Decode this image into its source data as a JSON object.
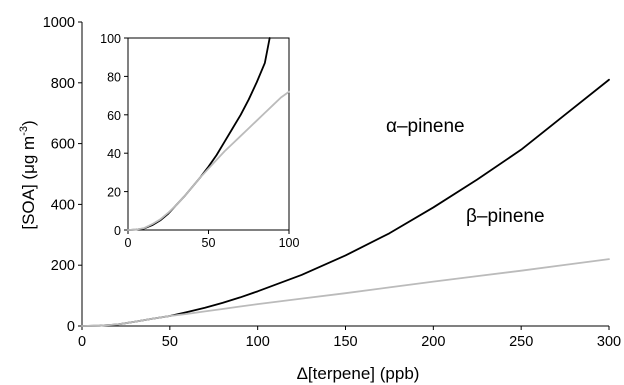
{
  "chart_data": [
    {
      "type": "line",
      "title": "",
      "xlabel": "Δ[terpene] (ppb)",
      "ylabel": "[SOA] (μg m",
      "ylabel_superscript": "-3",
      "ylabel_close": ")",
      "xlim": [
        0,
        300
      ],
      "ylim": [
        0,
        1000
      ],
      "xticks": [
        0,
        50,
        100,
        150,
        200,
        250,
        300
      ],
      "yticks": [
        0,
        200,
        400,
        600,
        800,
        1000
      ],
      "grid": false,
      "legend": "none",
      "series": [
        {
          "name": "α–pinene",
          "color": "#000000",
          "x": [
            0,
            10,
            20,
            30,
            40,
            50,
            60,
            70,
            80,
            90,
            100,
            125,
            150,
            175,
            200,
            225,
            250,
            275,
            300
          ],
          "y": [
            0,
            1,
            5,
            14,
            24,
            33,
            46,
            60,
            76,
            94,
            114,
            168,
            232,
            305,
            390,
            482,
            580,
            695,
            810
          ]
        },
        {
          "name": "β–pinene",
          "color": "#bbbbbb",
          "x": [
            0,
            10,
            20,
            30,
            40,
            50,
            60,
            70,
            80,
            90,
            100,
            125,
            150,
            175,
            200,
            225,
            250,
            275,
            300
          ],
          "y": [
            0,
            1,
            5,
            14,
            24,
            33,
            40,
            48,
            56,
            64,
            72,
            90,
            108,
            127,
            146,
            164,
            182,
            201,
            220
          ]
        }
      ]
    },
    {
      "type": "line",
      "title": "",
      "xlim": [
        0,
        100
      ],
      "ylim": [
        0,
        100
      ],
      "xticks": [
        0,
        50,
        100
      ],
      "yticks": [
        0,
        20,
        40,
        60,
        80,
        100
      ],
      "grid": false,
      "legend": "none",
      "series": [
        {
          "color": "#000000",
          "x": [
            0,
            5,
            10,
            15,
            20,
            25,
            30,
            35,
            40,
            45,
            50,
            55,
            60,
            65,
            70,
            75,
            80,
            85,
            88
          ],
          "y": [
            0,
            0.2,
            0.8,
            2.5,
            5,
            8.5,
            13,
            17.5,
            22.5,
            27.5,
            33,
            39,
            46,
            53,
            60,
            68,
            77,
            87,
            100
          ]
        },
        {
          "color": "#bbbbbb",
          "x": [
            0,
            5,
            10,
            15,
            20,
            25,
            30,
            35,
            40,
            45,
            50,
            55,
            60,
            65,
            70,
            75,
            80,
            85,
            90,
            95,
            100
          ],
          "y": [
            0,
            0.2,
            1,
            3,
            5.5,
            9,
            13,
            17.5,
            22.5,
            27.5,
            32,
            36.5,
            41,
            45,
            49,
            53,
            57,
            61,
            65,
            69,
            72
          ]
        }
      ]
    }
  ]
}
